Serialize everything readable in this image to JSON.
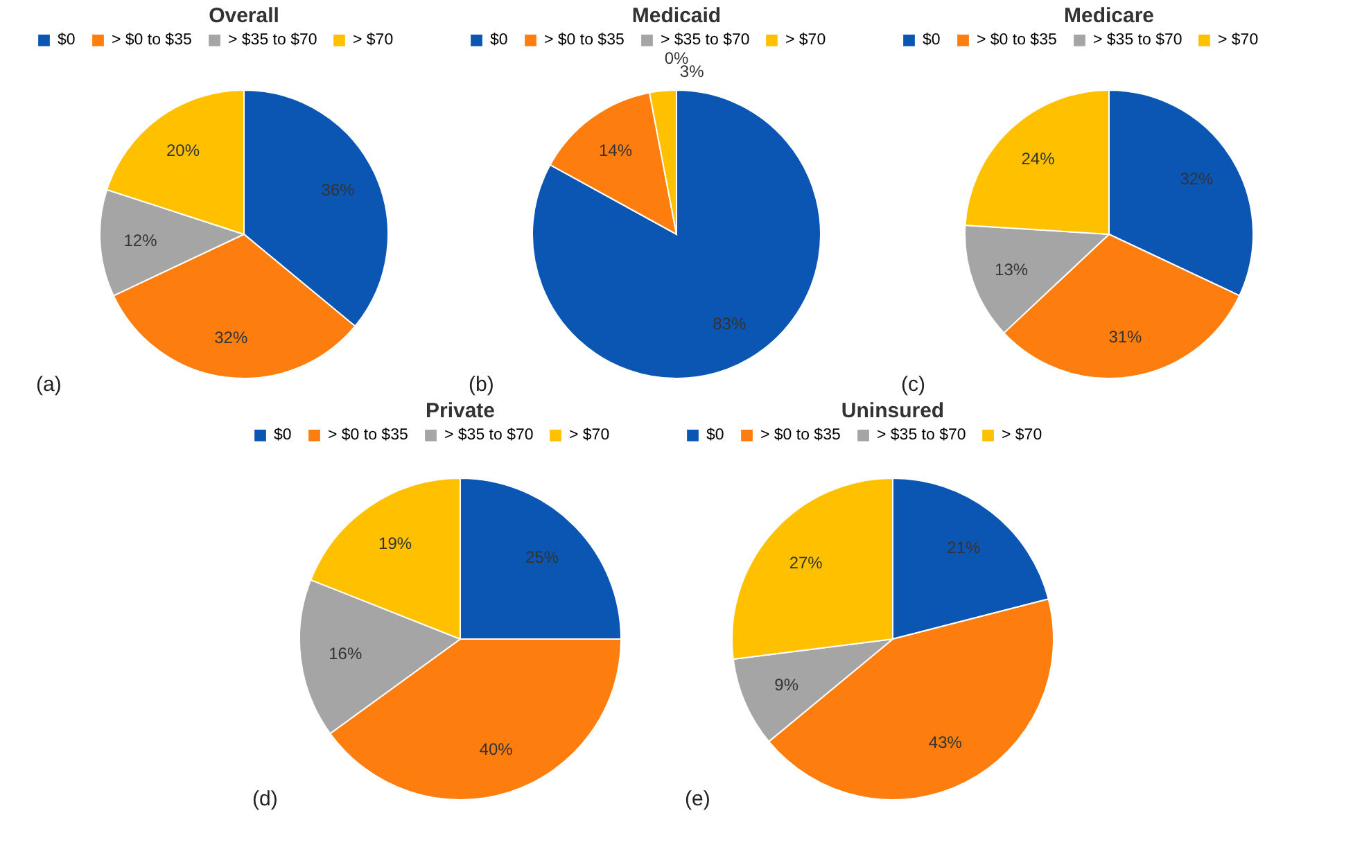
{
  "chart_data": [
    {
      "type": "pie",
      "title": "Overall",
      "categories": [
        "$0",
        "> $0 to $35",
        "> $35 to $70",
        "> $70"
      ],
      "values": [
        36,
        32,
        12,
        20
      ],
      "colors": [
        "#0b56b2",
        "#fd7e0e",
        "#a5a5a5",
        "#ffc000"
      ],
      "value_labels": [
        "36%",
        "32%",
        "12%",
        "20%"
      ],
      "legend": "top",
      "annotations": [
        "(a)"
      ]
    },
    {
      "type": "pie",
      "title": "Medicaid",
      "categories": [
        "$0",
        "> $0 to $35",
        "> $35 to $70",
        "> $70"
      ],
      "values": [
        83,
        14,
        0,
        3
      ],
      "colors": [
        "#0b56b2",
        "#fd7e0e",
        "#a5a5a5",
        "#ffc000"
      ],
      "value_labels": [
        "83%",
        "14%",
        "0%",
        "3%"
      ],
      "legend": "top",
      "annotations": [
        "(b)"
      ]
    },
    {
      "type": "pie",
      "title": "Medicare",
      "categories": [
        "$0",
        "> $0 to $35",
        "> $35 to $70",
        "> $70"
      ],
      "values": [
        32,
        31,
        13,
        24
      ],
      "colors": [
        "#0b56b2",
        "#fd7e0e",
        "#a5a5a5",
        "#ffc000"
      ],
      "value_labels": [
        "32%",
        "31%",
        "13%",
        "24%"
      ],
      "legend": "top",
      "annotations": [
        "(c)"
      ]
    },
    {
      "type": "pie",
      "title": "Private",
      "categories": [
        "$0",
        "> $0 to $35",
        "> $35 to $70",
        "> $70"
      ],
      "values": [
        25,
        40,
        16,
        19
      ],
      "colors": [
        "#0b56b2",
        "#fd7e0e",
        "#a5a5a5",
        "#ffc000"
      ],
      "value_labels": [
        "25%",
        "40%",
        "16%",
        "19%"
      ],
      "legend": "top",
      "annotations": [
        "(d)"
      ]
    },
    {
      "type": "pie",
      "title": "Uninsured",
      "categories": [
        "$0",
        "> $0 to $35",
        "> $35 to $70",
        "> $70"
      ],
      "values": [
        21,
        43,
        9,
        27
      ],
      "colors": [
        "#0b56b2",
        "#fd7e0e",
        "#a5a5a5",
        "#ffc000"
      ],
      "value_labels": [
        "21%",
        "43%",
        "9%",
        "27%"
      ],
      "legend": "top",
      "annotations": [
        "(e)"
      ]
    }
  ]
}
